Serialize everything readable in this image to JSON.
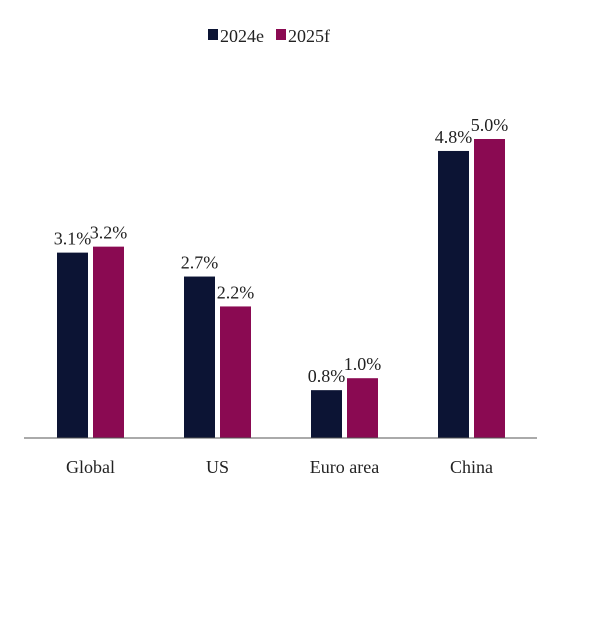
{
  "chart_data": {
    "type": "bar",
    "title": "",
    "xlabel": "",
    "ylabel": "",
    "categories": [
      "Global",
      "US",
      "Euro area",
      "China"
    ],
    "series": [
      {
        "name": "2024e",
        "values": [
          3.1,
          2.7,
          0.8,
          4.8
        ],
        "labels": [
          "3.1%",
          "2.7%",
          "0.8%",
          "4.8%"
        ],
        "color": "#0c1434"
      },
      {
        "name": "2025f",
        "values": [
          3.2,
          2.2,
          1.0,
          5.0
        ],
        "labels": [
          "3.2%",
          "2.2%",
          "1.0%",
          "5.0%"
        ],
        "color": "#8a0a52"
      }
    ],
    "ylim": [
      0,
      5.3
    ],
    "grid": false,
    "legend": "top-center"
  }
}
